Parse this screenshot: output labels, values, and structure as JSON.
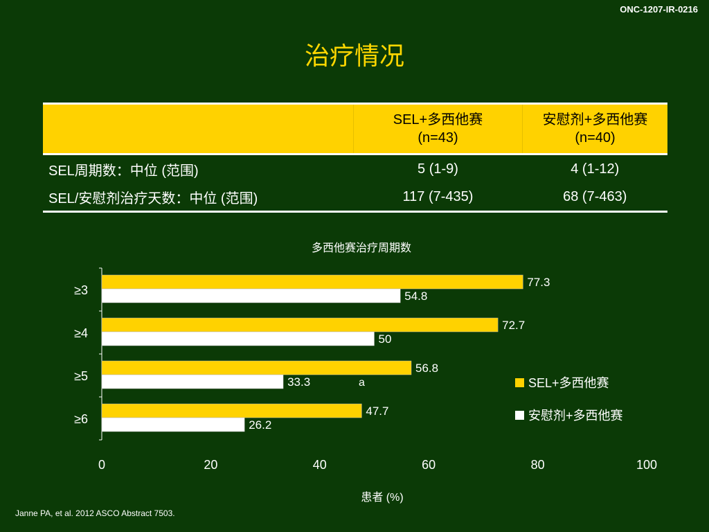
{
  "header": {
    "code": "ONC-1207-IR-0216",
    "title": "治疗情况"
  },
  "table": {
    "columns": [
      "",
      "SEL+多西他赛",
      "安慰剂+多西他赛"
    ],
    "column_sub": [
      "",
      "(n=43)",
      "(n=40)"
    ],
    "rows": [
      {
        "label": "SEL周期数：中位 (范围)",
        "values": [
          "5 (1-9)",
          "4 (1-12)"
        ]
      },
      {
        "label": "SEL/安慰剂治疗天数：中位 (范围)",
        "values": [
          "117 (7-435)",
          "68 (7-463)"
        ]
      }
    ]
  },
  "chart_data": {
    "type": "bar",
    "orientation": "horizontal",
    "title": "多西他赛治疗周期数",
    "xlabel": "患者 (%)",
    "ylabel": "",
    "categories": [
      "≥3",
      "≥4",
      "≥5",
      "≥6"
    ],
    "series": [
      {
        "name": "SEL+多西他赛",
        "color": "#ffd200",
        "values": [
          77.3,
          72.7,
          56.8,
          47.7
        ]
      },
      {
        "name": "安慰剂+多西他赛",
        "color": "#ffffff",
        "values": [
          54.8,
          50,
          33.3,
          26.2
        ]
      }
    ],
    "value_labels": [
      [
        "77.3",
        "72.7",
        "56.8",
        "47.7"
      ],
      [
        "54.8",
        "50",
        "33.3",
        "26.2"
      ]
    ],
    "xlim": [
      0,
      100
    ],
    "xticks": [
      0,
      20,
      40,
      60,
      80,
      100
    ],
    "annotation": "a",
    "legend_position": "right",
    "grid": false
  },
  "footnote": "Janne PA, et al. 2012 ASCO Abstract 7503."
}
